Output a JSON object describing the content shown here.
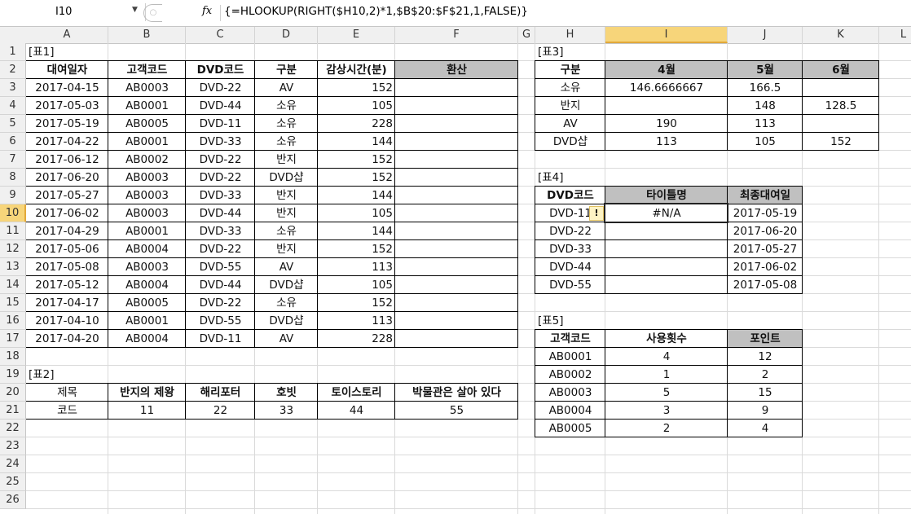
{
  "formula_bar": {
    "name_box": "I10",
    "fx_label": "fx",
    "formula": "{=HLOOKUP(RIGHT($H10,2)*1,$B$20:$F$21,1,FALSE)}"
  },
  "columns": [
    "A",
    "B",
    "C",
    "D",
    "E",
    "F",
    "G",
    "H",
    "I",
    "J",
    "K",
    "L"
  ],
  "rows": [
    "1",
    "2",
    "3",
    "4",
    "5",
    "6",
    "7",
    "8",
    "9",
    "10",
    "11",
    "12",
    "13",
    "14",
    "15",
    "16",
    "17",
    "18",
    "19",
    "20",
    "21",
    "22",
    "23",
    "24",
    "25",
    "26"
  ],
  "active_cell": "I10",
  "colors": {
    "header_fill": "#c0c0c0",
    "selection": "#f7d57a"
  },
  "error_icon": "warning-diamond-icon",
  "tables": [
    {
      "title_cell": "A1",
      "title": "[표1]",
      "range": "A2:F17"
    },
    {
      "title_cell": "A19",
      "title": "[표2]",
      "range": "A20:F21"
    },
    {
      "title_cell": "H1",
      "title": "[표3]",
      "range": "H2:K6"
    },
    {
      "title_cell": "H8",
      "title": "[표4]",
      "range": "H9:J14"
    },
    {
      "title_cell": "H16",
      "title": "[표5]",
      "range": "H17:J22"
    }
  ],
  "cells": [
    {
      "r": "A2",
      "v": "대여일자",
      "b": 1
    },
    {
      "r": "B2",
      "v": "고객코드",
      "b": 1
    },
    {
      "r": "C2",
      "v": "DVD코드",
      "b": 1
    },
    {
      "r": "D2",
      "v": "구분",
      "b": 1
    },
    {
      "r": "E2",
      "v": "감상시간(분)",
      "b": 1
    },
    {
      "r": "F2",
      "v": "환산",
      "b": 1,
      "f": 1
    },
    {
      "r": "A3",
      "v": "2017-04-15"
    },
    {
      "r": "B3",
      "v": "AB0003"
    },
    {
      "r": "C3",
      "v": "DVD-22"
    },
    {
      "r": "D3",
      "v": "AV"
    },
    {
      "r": "E3",
      "v": "152",
      "h": "right"
    },
    {
      "r": "A4",
      "v": "2017-05-03"
    },
    {
      "r": "B4",
      "v": "AB0001"
    },
    {
      "r": "C4",
      "v": "DVD-44"
    },
    {
      "r": "D4",
      "v": "소유"
    },
    {
      "r": "E4",
      "v": "105",
      "h": "right"
    },
    {
      "r": "A5",
      "v": "2017-05-19"
    },
    {
      "r": "B5",
      "v": "AB0005"
    },
    {
      "r": "C5",
      "v": "DVD-11"
    },
    {
      "r": "D5",
      "v": "소유"
    },
    {
      "r": "E5",
      "v": "228",
      "h": "right"
    },
    {
      "r": "A6",
      "v": "2017-04-22"
    },
    {
      "r": "B6",
      "v": "AB0001"
    },
    {
      "r": "C6",
      "v": "DVD-33"
    },
    {
      "r": "D6",
      "v": "소유"
    },
    {
      "r": "E6",
      "v": "144",
      "h": "right"
    },
    {
      "r": "A7",
      "v": "2017-06-12"
    },
    {
      "r": "B7",
      "v": "AB0002"
    },
    {
      "r": "C7",
      "v": "DVD-22"
    },
    {
      "r": "D7",
      "v": "반지"
    },
    {
      "r": "E7",
      "v": "152",
      "h": "right"
    },
    {
      "r": "A8",
      "v": "2017-06-20"
    },
    {
      "r": "B8",
      "v": "AB0003"
    },
    {
      "r": "C8",
      "v": "DVD-22"
    },
    {
      "r": "D8",
      "v": "DVD샵"
    },
    {
      "r": "E8",
      "v": "152",
      "h": "right"
    },
    {
      "r": "A9",
      "v": "2017-05-27"
    },
    {
      "r": "B9",
      "v": "AB0003"
    },
    {
      "r": "C9",
      "v": "DVD-33"
    },
    {
      "r": "D9",
      "v": "반지"
    },
    {
      "r": "E9",
      "v": "144",
      "h": "right"
    },
    {
      "r": "A10",
      "v": "2017-06-02"
    },
    {
      "r": "B10",
      "v": "AB0003"
    },
    {
      "r": "C10",
      "v": "DVD-44"
    },
    {
      "r": "D10",
      "v": "반지"
    },
    {
      "r": "E10",
      "v": "105",
      "h": "right"
    },
    {
      "r": "A11",
      "v": "2017-04-29"
    },
    {
      "r": "B11",
      "v": "AB0001"
    },
    {
      "r": "C11",
      "v": "DVD-33"
    },
    {
      "r": "D11",
      "v": "소유"
    },
    {
      "r": "E11",
      "v": "144",
      "h": "right"
    },
    {
      "r": "A12",
      "v": "2017-05-06"
    },
    {
      "r": "B12",
      "v": "AB0004"
    },
    {
      "r": "C12",
      "v": "DVD-22"
    },
    {
      "r": "D12",
      "v": "반지"
    },
    {
      "r": "E12",
      "v": "152",
      "h": "right"
    },
    {
      "r": "A13",
      "v": "2017-05-08"
    },
    {
      "r": "B13",
      "v": "AB0003"
    },
    {
      "r": "C13",
      "v": "DVD-55"
    },
    {
      "r": "D13",
      "v": "AV"
    },
    {
      "r": "E13",
      "v": "113",
      "h": "right"
    },
    {
      "r": "A14",
      "v": "2017-05-12"
    },
    {
      "r": "B14",
      "v": "AB0004"
    },
    {
      "r": "C14",
      "v": "DVD-44"
    },
    {
      "r": "D14",
      "v": "DVD샵"
    },
    {
      "r": "E14",
      "v": "105",
      "h": "right"
    },
    {
      "r": "A15",
      "v": "2017-04-17"
    },
    {
      "r": "B15",
      "v": "AB0005"
    },
    {
      "r": "C15",
      "v": "DVD-22"
    },
    {
      "r": "D15",
      "v": "소유"
    },
    {
      "r": "E15",
      "v": "152",
      "h": "right"
    },
    {
      "r": "A16",
      "v": "2017-04-10"
    },
    {
      "r": "B16",
      "v": "AB0001"
    },
    {
      "r": "C16",
      "v": "DVD-55"
    },
    {
      "r": "D16",
      "v": "DVD샵"
    },
    {
      "r": "E16",
      "v": "113",
      "h": "right"
    },
    {
      "r": "A17",
      "v": "2017-04-20"
    },
    {
      "r": "B17",
      "v": "AB0004"
    },
    {
      "r": "C17",
      "v": "DVD-11"
    },
    {
      "r": "D17",
      "v": "AV"
    },
    {
      "r": "E17",
      "v": "228",
      "h": "right"
    },
    {
      "r": "A20",
      "v": "제목"
    },
    {
      "r": "B20",
      "v": "반지의 제왕",
      "b": 1
    },
    {
      "r": "C20",
      "v": "해리포터",
      "b": 1
    },
    {
      "r": "D20",
      "v": "호빗",
      "b": 1
    },
    {
      "r": "E20",
      "v": "토이스토리",
      "b": 1
    },
    {
      "r": "F20",
      "v": "박물관은 살아 있다",
      "b": 1
    },
    {
      "r": "A21",
      "v": "코드"
    },
    {
      "r": "B21",
      "v": "11"
    },
    {
      "r": "C21",
      "v": "22"
    },
    {
      "r": "D21",
      "v": "33"
    },
    {
      "r": "E21",
      "v": "44"
    },
    {
      "r": "F21",
      "v": "55"
    },
    {
      "r": "H2",
      "v": "구분",
      "b": 1
    },
    {
      "r": "I2",
      "v": "4월",
      "b": 1,
      "f": 1
    },
    {
      "r": "J2",
      "v": "5월",
      "b": 1,
      "f": 1
    },
    {
      "r": "K2",
      "v": "6월",
      "b": 1,
      "f": 1
    },
    {
      "r": "H3",
      "v": "소유"
    },
    {
      "r": "I3",
      "v": "146.6666667"
    },
    {
      "r": "J3",
      "v": "166.5"
    },
    {
      "r": "H4",
      "v": "반지"
    },
    {
      "r": "J4",
      "v": "148"
    },
    {
      "r": "K4",
      "v": "128.5"
    },
    {
      "r": "H5",
      "v": "AV"
    },
    {
      "r": "I5",
      "v": "190"
    },
    {
      "r": "J5",
      "v": "113"
    },
    {
      "r": "H6",
      "v": "DVD샵"
    },
    {
      "r": "I6",
      "v": "113"
    },
    {
      "r": "J6",
      "v": "105"
    },
    {
      "r": "K6",
      "v": "152"
    },
    {
      "r": "H9",
      "v": "DVD코드",
      "b": 1
    },
    {
      "r": "I9",
      "v": "타이틀명",
      "b": 1,
      "f": 1
    },
    {
      "r": "J9",
      "v": "최종대여일",
      "b": 1,
      "f": 1
    },
    {
      "r": "H10",
      "v": "DVD-11"
    },
    {
      "r": "I10",
      "v": "#N/A"
    },
    {
      "r": "J10",
      "v": "2017-05-19"
    },
    {
      "r": "H11",
      "v": "DVD-22"
    },
    {
      "r": "J11",
      "v": "2017-06-20"
    },
    {
      "r": "H12",
      "v": "DVD-33"
    },
    {
      "r": "J12",
      "v": "2017-05-27"
    },
    {
      "r": "H13",
      "v": "DVD-44"
    },
    {
      "r": "J13",
      "v": "2017-06-02"
    },
    {
      "r": "H14",
      "v": "DVD-55"
    },
    {
      "r": "J14",
      "v": "2017-05-08"
    },
    {
      "r": "H17",
      "v": "고객코드",
      "b": 1
    },
    {
      "r": "I17",
      "v": "사용횟수",
      "b": 1
    },
    {
      "r": "J17",
      "v": "포인트",
      "b": 1,
      "f": 1
    },
    {
      "r": "H18",
      "v": "AB0001"
    },
    {
      "r": "I18",
      "v": "4"
    },
    {
      "r": "J18",
      "v": "12"
    },
    {
      "r": "H19",
      "v": "AB0002"
    },
    {
      "r": "I19",
      "v": "1"
    },
    {
      "r": "J19",
      "v": "2"
    },
    {
      "r": "H20",
      "v": "AB0003"
    },
    {
      "r": "I20",
      "v": "5"
    },
    {
      "r": "J20",
      "v": "15"
    },
    {
      "r": "H21",
      "v": "AB0004"
    },
    {
      "r": "I21",
      "v": "3"
    },
    {
      "r": "J21",
      "v": "9"
    },
    {
      "r": "H22",
      "v": "AB0005"
    },
    {
      "r": "I22",
      "v": "2"
    },
    {
      "r": "J22",
      "v": "4"
    }
  ]
}
